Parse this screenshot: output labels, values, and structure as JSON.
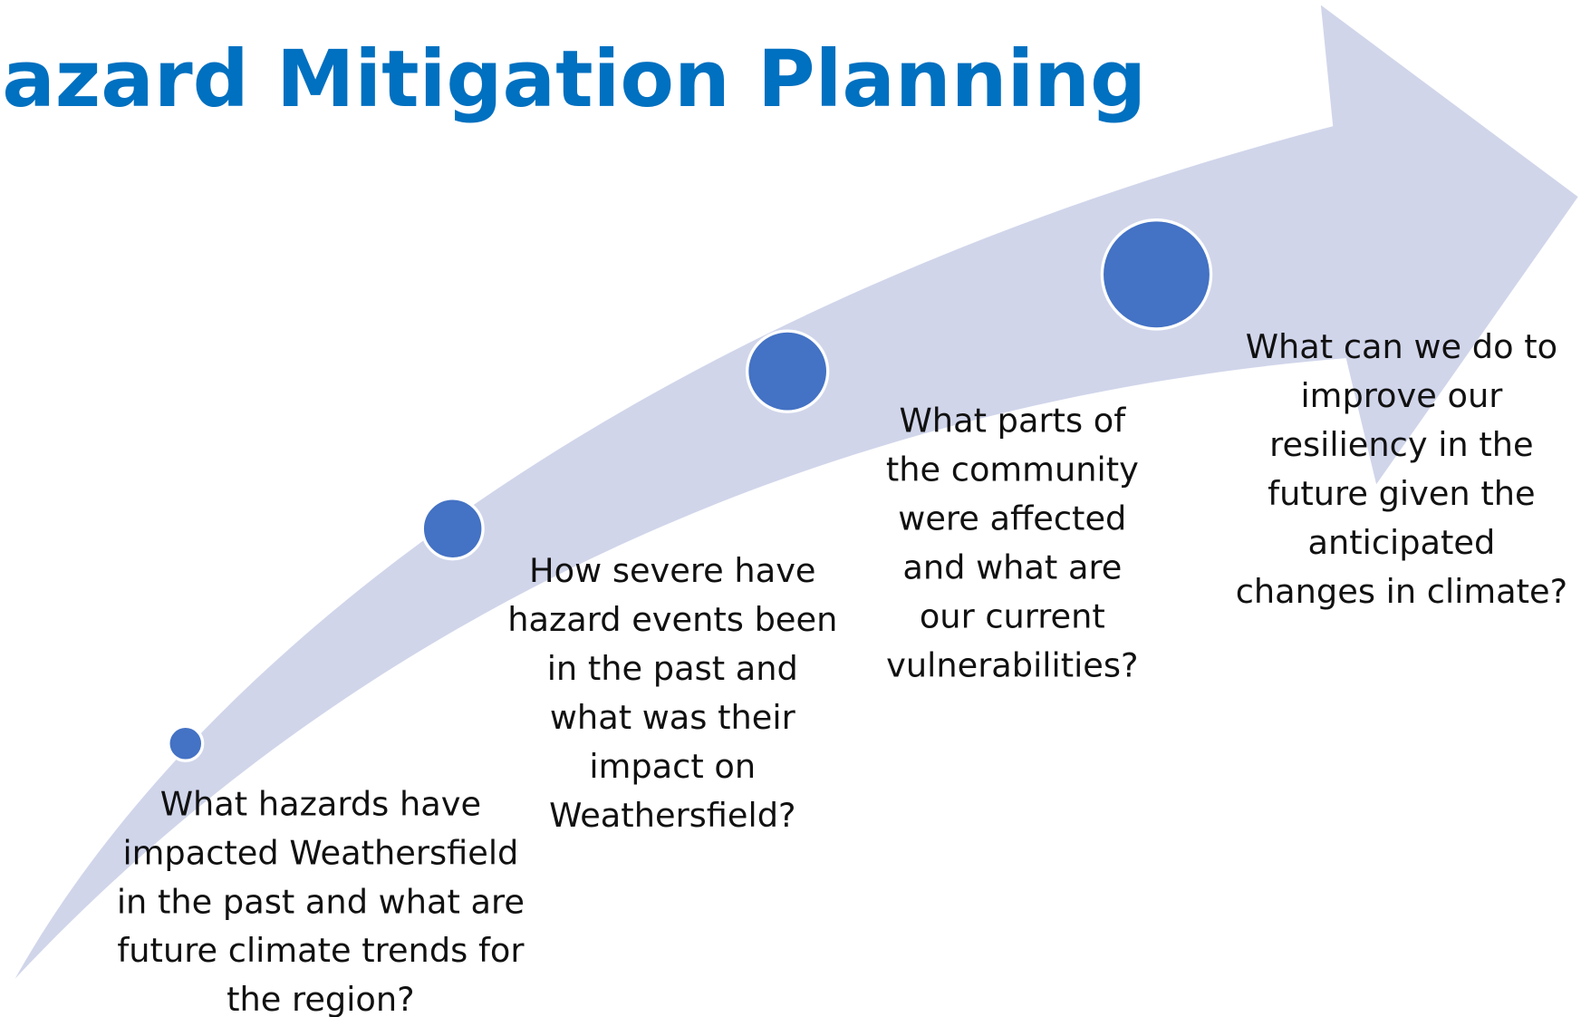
{
  "title": "azard Mitigation Planning",
  "steps": [
    {
      "lines": [
        "What hazards have",
        "impacted Weathersfield",
        "in the past and what are",
        "future climate trends for",
        "the region?"
      ]
    },
    {
      "lines": [
        "How severe have",
        "hazard events been",
        "in the past and",
        "what was their",
        "impact on",
        "Weathersfield?"
      ]
    },
    {
      "lines": [
        "What parts of",
        "the community",
        "were affected",
        "and what are",
        "our current",
        "vulnerabilities?"
      ]
    },
    {
      "lines": [
        "What can we do to",
        "improve our",
        "resiliency in the",
        "future given the",
        "anticipated",
        "changes in climate?"
      ]
    }
  ]
}
